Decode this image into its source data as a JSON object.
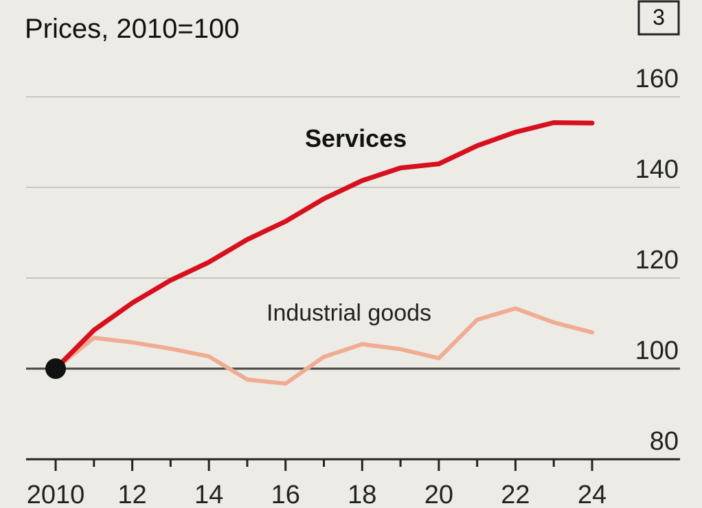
{
  "chart_number": "3",
  "colors": {
    "background": "#ecebe5",
    "services": "#d7101e",
    "industrial_goods": "#f0ac93",
    "gridline": "#c6c6c2",
    "baseline": "#444444",
    "axis": "#222222",
    "origin_dot": "#111111"
  },
  "chart_data": {
    "type": "line",
    "subtitle": "Prices, 2010=100",
    "ylim": [
      80,
      160
    ],
    "y_ticks": [
      80,
      100,
      120,
      140,
      160
    ],
    "y_tick_labels": [
      "80",
      "100",
      "120",
      "140",
      "160"
    ],
    "x_ticks": [
      2010,
      2012,
      2014,
      2016,
      2018,
      2020,
      2022,
      2024
    ],
    "x_tick_labels": [
      "2010",
      "12",
      "14",
      "16",
      "18",
      "20",
      "22",
      "24"
    ],
    "grid": true,
    "series": [
      {
        "name": "Services",
        "x": [
          2010,
          2011,
          2012,
          2013,
          2014,
          2015,
          2016,
          2017,
          2018,
          2019,
          2020,
          2021,
          2022,
          2023,
          2024
        ],
        "values": [
          100,
          108.5,
          114.5,
          119.5,
          123.5,
          128.5,
          132.5,
          137.5,
          141.5,
          144.3,
          145.2,
          149.2,
          152.2,
          154.3,
          154.2
        ]
      },
      {
        "name": "Industrial goods",
        "x": [
          2010,
          2011,
          2012,
          2013,
          2014,
          2015,
          2016,
          2017,
          2018,
          2019,
          2020,
          2021,
          2022,
          2023,
          2024
        ],
        "values": [
          100,
          106.8,
          105.8,
          104.4,
          102.7,
          97.6,
          96.7,
          102.6,
          105.4,
          104.3,
          102.3,
          110.8,
          113.3,
          110.2,
          108
        ]
      }
    ]
  }
}
